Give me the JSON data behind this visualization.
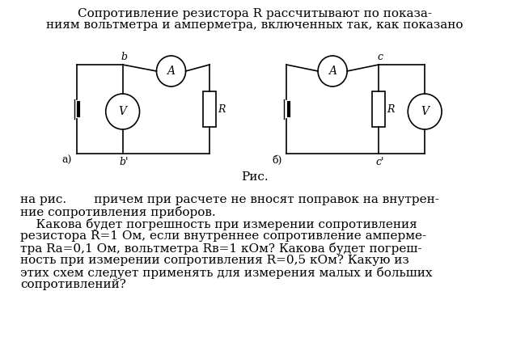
{
  "background_color": "#ffffff",
  "title_line1": "Сопротивление резистора R рассчитывают по показа-",
  "title_line2": "ниям вольтметра и амперметра, включенных так, как показано",
  "caption": "Рис.",
  "text_line1": "на рис.       причем при расчете не вносят поправок на внутрен-",
  "text_line2": "ние сопротивления приборов.",
  "text_lines": [
    "    Какова будет погрешность при измерении сопротивления",
    "резистора R=1 Ом, если внутреннее сопротивление амперме-",
    "тра Rа=0,1 Ом, вольтметра Rв=1 кОм? Какова будет погреш-",
    "ность при измерении сопротивления R=0,5 кОм? Какую из",
    "этих схем следует применять для измерения малых и больших",
    "сопротивлений?"
  ],
  "schema_a_label": "а)",
  "schema_b_label": "б)",
  "font_size_main": 11,
  "font_size_small": 9
}
